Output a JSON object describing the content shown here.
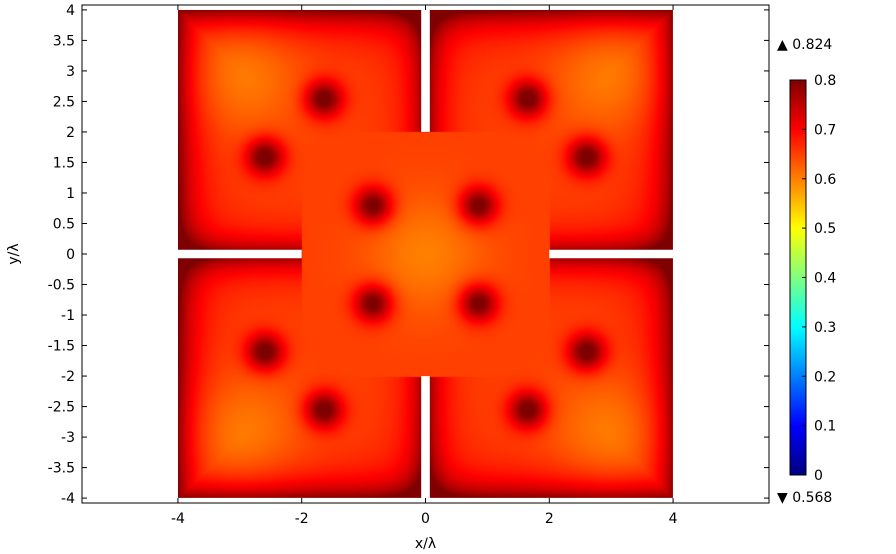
{
  "chart_data": {
    "type": "heatmap",
    "title": "",
    "xlabel": "x/λ",
    "ylabel": "y/λ",
    "xlim": [
      -5.55,
      5.55
    ],
    "ylim": [
      -4.08,
      4.08
    ],
    "x_ticks": [
      -4,
      -2,
      0,
      2,
      4
    ],
    "x_tick_labels": [
      "-4",
      "-2",
      "0",
      "2",
      "4"
    ],
    "y_ticks": [
      4,
      3.5,
      3,
      2.5,
      2,
      1.5,
      1,
      0.5,
      0,
      -0.5,
      -1,
      -1.5,
      -2,
      -2.5,
      -3,
      -3.5,
      -4
    ],
    "y_tick_labels": [
      "4",
      "3.5",
      "3",
      "2.5",
      "2",
      "1.5",
      "1",
      "0.5",
      "0",
      "-0.5",
      "-1",
      "-1.5",
      "-2",
      "-2.5",
      "-3",
      "-3.5",
      "-4"
    ],
    "grid": false,
    "colorbar": {
      "min": 0,
      "max": 0.8,
      "ticks": [
        0.8,
        0.7,
        0.6,
        0.5,
        0.4,
        0.3,
        0.2,
        0.1,
        0
      ],
      "tick_labels": [
        "0.8",
        "0.7",
        "0.6",
        "0.5",
        "0.4",
        "0.3",
        "0.2",
        "0.1",
        "0"
      ],
      "colormap": "jet",
      "max_marker": "▲ 0.824",
      "min_marker": "▼ 0.568",
      "data_max": 0.824,
      "data_min": 0.568
    },
    "domain": {
      "extent": [
        -4,
        4
      ],
      "slit_half_width": 0.07,
      "vertical_slit_to": 2.0,
      "horizontal_slit_to": 2.0
    },
    "field": {
      "background_value": 0.65,
      "edge_value": 0.8,
      "bright_corner_value": 0.6,
      "hotspot_value": 0.8,
      "hotspots": [
        {
          "x": -2.6,
          "y": 1.6
        },
        {
          "x": -1.65,
          "y": 2.55
        },
        {
          "x": 1.65,
          "y": 2.55
        },
        {
          "x": 2.6,
          "y": 1.6
        },
        {
          "x": -0.85,
          "y": 0.8
        },
        {
          "x": 0.85,
          "y": 0.8
        },
        {
          "x": -0.85,
          "y": -0.8
        },
        {
          "x": 0.85,
          "y": -0.8
        },
        {
          "x": -2.6,
          "y": -1.6
        },
        {
          "x": -1.65,
          "y": -2.55
        },
        {
          "x": 1.65,
          "y": -2.55
        },
        {
          "x": 2.6,
          "y": -1.6
        }
      ],
      "bright_spots": [
        {
          "x": -3.0,
          "y": 2.95
        },
        {
          "x": 3.0,
          "y": 2.95
        },
        {
          "x": -3.0,
          "y": -2.95
        },
        {
          "x": 3.0,
          "y": -2.95
        },
        {
          "x": 0,
          "y": 0
        }
      ]
    },
    "colors": {
      "colormap_stops": [
        "#00007f",
        "#0000ff",
        "#007fff",
        "#00ffff",
        "#7fff7f",
        "#ffff00",
        "#ff7f00",
        "#ff0000",
        "#7f0000"
      ]
    }
  }
}
